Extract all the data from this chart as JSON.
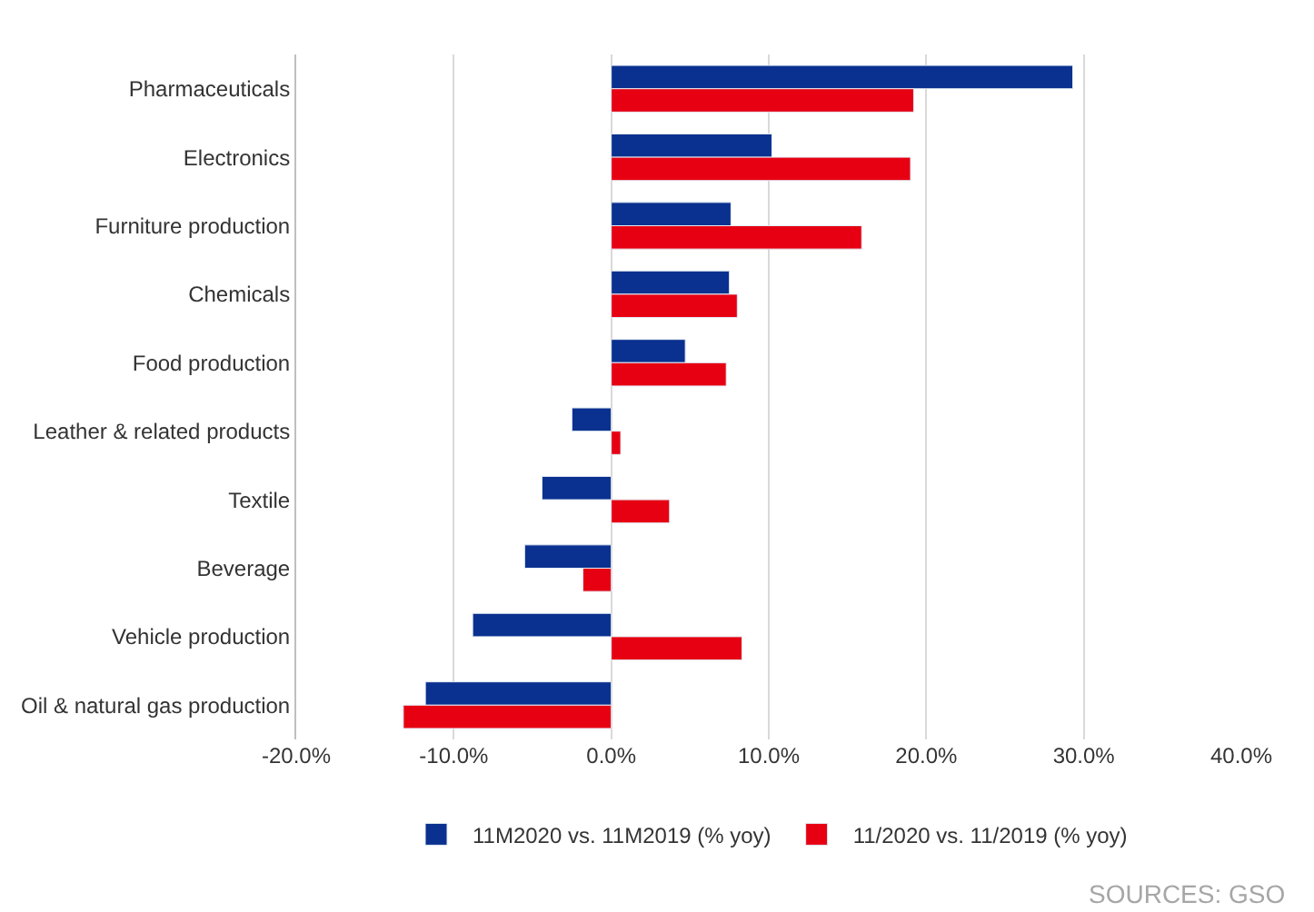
{
  "chart_data": {
    "type": "bar",
    "orientation": "horizontal",
    "categories": [
      "Pharmaceuticals",
      "Electronics",
      "Furniture production",
      "Chemicals",
      "Food production",
      "Leather & related products",
      "Textile",
      "Beverage",
      "Vehicle production",
      "Oil & natural gas production"
    ],
    "series": [
      {
        "name": "11M2020 vs. 11M2019 (% yoy)",
        "color": "#0a318f",
        "values": [
          29.3,
          10.2,
          7.6,
          7.5,
          4.7,
          -2.5,
          -4.4,
          -5.5,
          -8.8,
          -11.8
        ]
      },
      {
        "name": "11/2020 vs. 11/2019 (% yoy)",
        "color": "#e60012",
        "values": [
          19.2,
          19.0,
          15.9,
          8.0,
          7.3,
          0.6,
          3.7,
          -1.8,
          8.3,
          -13.2
        ]
      }
    ],
    "xlim": [
      -20,
      40
    ],
    "xticks": [
      {
        "value": -20,
        "label": "-20.0%"
      },
      {
        "value": -10,
        "label": "-10.0%"
      },
      {
        "value": 0,
        "label": "0.0%"
      },
      {
        "value": 10,
        "label": "10.0%"
      },
      {
        "value": 20,
        "label": "20.0%"
      },
      {
        "value": 30,
        "label": "30.0%"
      },
      {
        "value": 40,
        "label": "40.0%"
      }
    ],
    "grid": "x",
    "legend": "bottom",
    "annotations": [
      "SOURCES: GSO"
    ]
  }
}
